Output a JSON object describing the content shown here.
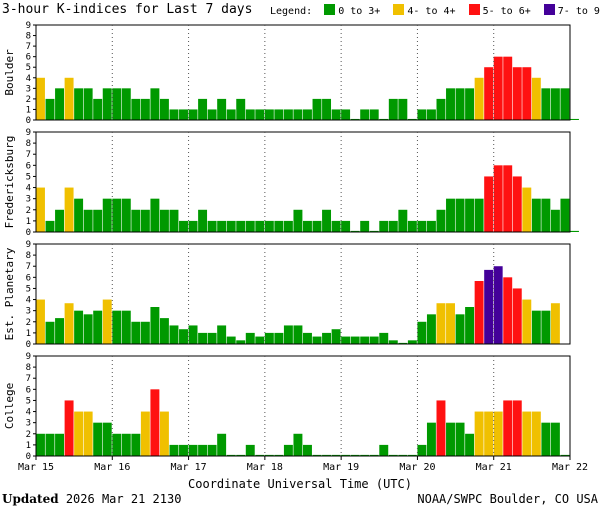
{
  "header": {
    "title": "3-hour K-indices for Last 7 days",
    "legend_label": "Legend:",
    "legend": [
      {
        "label": "0 to 3+",
        "color": "#009900"
      },
      {
        "label": "4- to 4+",
        "color": "#f0c000"
      },
      {
        "label": "5- to 6+",
        "color": "#ff1111"
      },
      {
        "label": "7- to 9",
        "color": "#440099"
      }
    ]
  },
  "footer": {
    "updated_label": "Updated",
    "updated_value": "2026 Mar 21 2130",
    "credit": "NOAA/SWPC Boulder, CO USA"
  },
  "chart_data": [
    {
      "type": "bar",
      "ylabel": "Boulder",
      "ylim": [
        0,
        9
      ],
      "yticks": [
        "0",
        "1",
        "2",
        "3",
        "4",
        "5",
        "6",
        "7",
        "8",
        "9"
      ],
      "xlabel": "Coordinate Universal Time (UTC)",
      "xticks": [
        "Mar 15",
        "Mar 16",
        "Mar 17",
        "Mar 18",
        "Mar 19",
        "Mar 20",
        "Mar 21",
        "Mar 22"
      ],
      "values": [
        4,
        2,
        3,
        4,
        3,
        3,
        2,
        3,
        3,
        3,
        2,
        2,
        3,
        2,
        1,
        1,
        1,
        2,
        1,
        2,
        1,
        2,
        1,
        1,
        1,
        1,
        1,
        1,
        1,
        2,
        2,
        1,
        1,
        0.1,
        1,
        1,
        0.1,
        2,
        2,
        0.1,
        1,
        1,
        2,
        3,
        3,
        3,
        4,
        5,
        6,
        6,
        5,
        5,
        4,
        3,
        3,
        3,
        0.1
      ]
    },
    {
      "type": "bar",
      "ylabel": "Fredericksburg",
      "ylim": [
        0,
        9
      ],
      "yticks": [
        "0",
        "1",
        "2",
        "3",
        "4",
        "5",
        "6",
        "7",
        "8",
        "9"
      ],
      "xlabel": "Coordinate Universal Time (UTC)",
      "xticks": [
        "Mar 15",
        "Mar 16",
        "Mar 17",
        "Mar 18",
        "Mar 19",
        "Mar 20",
        "Mar 21",
        "Mar 22"
      ],
      "values": [
        4,
        1,
        2,
        4,
        3,
        2,
        2,
        3,
        3,
        3,
        2,
        2,
        3,
        2,
        2,
        1,
        1,
        2,
        1,
        1,
        1,
        1,
        1,
        1,
        1,
        1,
        1,
        2,
        1,
        1,
        2,
        1,
        1,
        0.1,
        1,
        0.1,
        1,
        1,
        2,
        1,
        1,
        1,
        2,
        3,
        3,
        3,
        3,
        5,
        6,
        6,
        5,
        4,
        3,
        3,
        2,
        3,
        0.1
      ]
    },
    {
      "type": "bar",
      "ylabel": "Est. Planetary",
      "ylim": [
        0,
        9
      ],
      "yticks": [
        "0",
        "1",
        "2",
        "3",
        "4",
        "5",
        "6",
        "7",
        "8",
        "9"
      ],
      "xlabel": "Coordinate Universal Time (UTC)",
      "xticks": [
        "Mar 15",
        "Mar 16",
        "Mar 17",
        "Mar 18",
        "Mar 19",
        "Mar 20",
        "Mar 21",
        "Mar 22"
      ],
      "values": [
        4,
        2,
        2.33,
        3.67,
        3,
        2.67,
        3,
        4,
        3,
        3,
        2,
        2,
        3.33,
        2.33,
        1.67,
        1.33,
        1.67,
        1,
        1,
        1.67,
        0.67,
        0.33,
        1,
        0.67,
        1,
        1,
        1.67,
        1.67,
        1,
        0.67,
        1,
        1.33,
        0.67,
        0.67,
        0.67,
        0.67,
        1,
        0.33,
        0.1,
        0.33,
        2,
        2.67,
        3.67,
        3.67,
        2.67,
        3.33,
        5.67,
        6.67,
        7,
        6,
        5,
        4,
        3,
        3,
        3.67
      ]
    },
    {
      "type": "bar",
      "ylabel": "College",
      "ylim": [
        0,
        9
      ],
      "yticks": [
        "0",
        "1",
        "2",
        "3",
        "4",
        "5",
        "6",
        "7",
        "8",
        "9"
      ],
      "xlabel": "Coordinate Universal Time (UTC)",
      "xticks": [
        "Mar 15",
        "Mar 16",
        "Mar 17",
        "Mar 18",
        "Mar 19",
        "Mar 20",
        "Mar 21",
        "Mar 22"
      ],
      "values": [
        2,
        2,
        2,
        5,
        4,
        4,
        3,
        3,
        2,
        2,
        2,
        4,
        6,
        4,
        1,
        1,
        1,
        1,
        1,
        2,
        0.1,
        0.1,
        1,
        0.1,
        0.1,
        0.1,
        1,
        2,
        1,
        0.1,
        0.1,
        0.1,
        0.1,
        0.1,
        0.1,
        0.1,
        1,
        0.1,
        0.1,
        0.1,
        1,
        3,
        5,
        3,
        3,
        2,
        4,
        4,
        4,
        5,
        5,
        4,
        4,
        3,
        3,
        0.1
      ]
    }
  ]
}
